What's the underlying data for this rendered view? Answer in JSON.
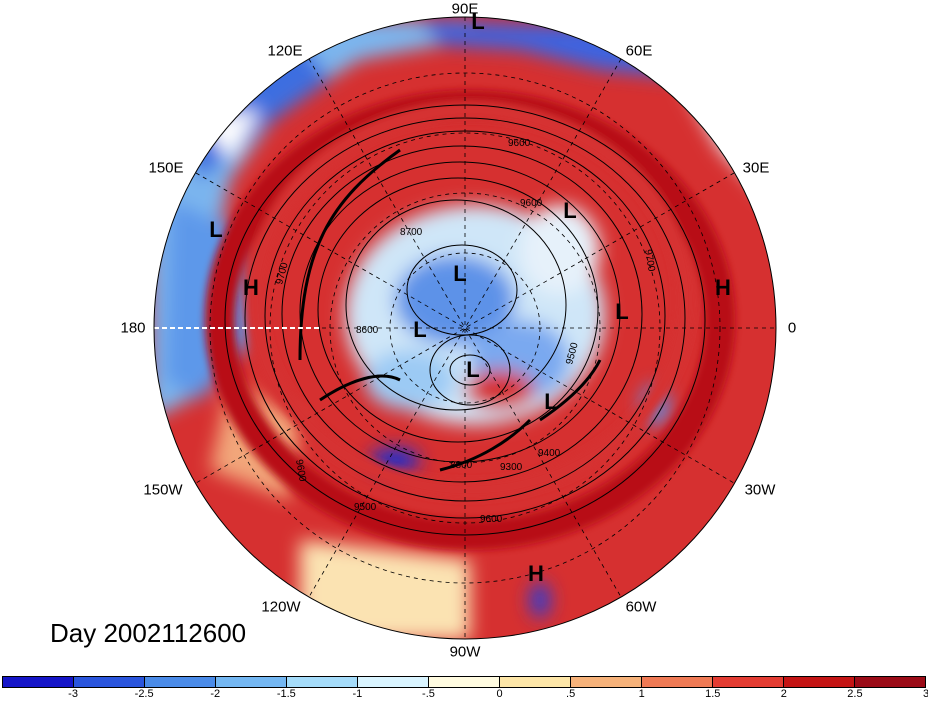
{
  "lon_labels": [
    "90E",
    "60E",
    "30E",
    "0",
    "30W",
    "60W",
    "90W",
    "120W",
    "150W",
    "180",
    "150E",
    "120E"
  ],
  "pressure_systems": [
    "L",
    "L",
    "L",
    "L",
    "L",
    "L",
    "L",
    "L",
    "H",
    "H",
    "H"
  ],
  "contour_labels": [
    "9600",
    "9700",
    "8700",
    "8600",
    "9700",
    "9500",
    "9400",
    "9300",
    "8800",
    "9600",
    "9500",
    "9600",
    "9600"
  ],
  "date_label": "Day 2002112600",
  "colorbar": {
    "colors": [
      "#1515c8",
      "#2a55dd",
      "#4a8be8",
      "#74b7f2",
      "#a5dcfa",
      "#d9f4ff",
      "#fffbe0",
      "#fde6a8",
      "#f6b27a",
      "#ef7a55",
      "#e33c32",
      "#c41414",
      "#9b0b17"
    ],
    "ticks": [
      "-3",
      "-2.5",
      "-2",
      "-1.5",
      "-1",
      "-.5",
      "0",
      ".5",
      "1",
      "1.5",
      "2",
      "2.5",
      "3"
    ]
  },
  "icons": {
    "map": "polar-stereographic-map"
  }
}
